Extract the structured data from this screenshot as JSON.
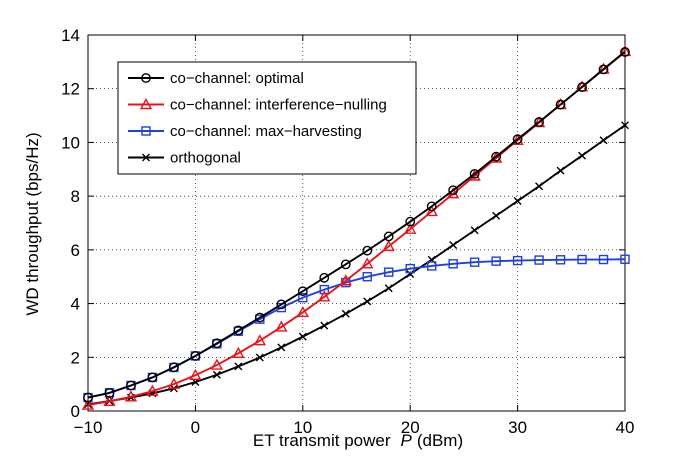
{
  "chart_data": {
    "type": "line",
    "title": "",
    "xlabel": "ET transmit power",
    "xlabel_var": "P",
    "xlabel_unit": "(dBm)",
    "ylabel": "WD throughput (bps/Hz)",
    "xlim": [
      -10,
      40
    ],
    "ylim": [
      0,
      14
    ],
    "xticks": [
      -10,
      0,
      10,
      20,
      30,
      40
    ],
    "yticks": [
      0,
      2,
      4,
      6,
      8,
      10,
      12,
      14
    ],
    "xtick_labels": [
      "−10",
      "0",
      "10",
      "20",
      "30",
      "40"
    ],
    "ytick_labels": [
      "0",
      "2",
      "4",
      "6",
      "8",
      "10",
      "12",
      "14"
    ],
    "grid": true,
    "legend_position": "top-left",
    "x": [
      -10,
      -8,
      -6,
      -4,
      -2,
      0,
      2,
      4,
      6,
      8,
      10,
      12,
      14,
      16,
      18,
      20,
      22,
      24,
      26,
      28,
      30,
      32,
      34,
      36,
      38,
      40
    ],
    "series": [
      {
        "name": "co−channel: optimal",
        "color": "#000000",
        "marker": "circle",
        "values": [
          0.5,
          0.67,
          0.95,
          1.25,
          1.63,
          2.05,
          2.52,
          3.0,
          3.48,
          3.97,
          4.46,
          4.96,
          5.46,
          5.97,
          6.5,
          7.05,
          7.62,
          8.22,
          8.83,
          9.47,
          10.12,
          10.76,
          11.41,
          12.06,
          12.72,
          13.37
        ]
      },
      {
        "name": "co−channel: interference−nulling",
        "color": "#e8141b",
        "marker": "triangle",
        "values": [
          0.22,
          0.36,
          0.53,
          0.74,
          1.0,
          1.33,
          1.71,
          2.15,
          2.62,
          3.13,
          3.67,
          4.25,
          4.85,
          5.48,
          6.13,
          6.77,
          7.43,
          8.09,
          8.75,
          9.42,
          10.08,
          10.74,
          11.41,
          12.07,
          12.73,
          13.39
        ]
      },
      {
        "name": "co−channel: max−harvesting",
        "color": "#1f3fe0",
        "marker": "square",
        "values": [
          0.5,
          0.68,
          0.95,
          1.25,
          1.62,
          2.05,
          2.5,
          2.97,
          3.42,
          3.85,
          4.22,
          4.52,
          4.78,
          5.0,
          5.17,
          5.3,
          5.4,
          5.48,
          5.54,
          5.58,
          5.6,
          5.62,
          5.63,
          5.64,
          5.64,
          5.65
        ]
      },
      {
        "name": "orthogonal",
        "color": "#000000",
        "marker": "x",
        "values": [
          0.25,
          0.37,
          0.5,
          0.66,
          0.84,
          1.08,
          1.35,
          1.66,
          1.99,
          2.37,
          2.77,
          3.18,
          3.62,
          4.08,
          4.57,
          5.1,
          5.63,
          6.18,
          6.73,
          7.27,
          7.82,
          8.37,
          8.95,
          9.51,
          10.08,
          10.64
        ]
      }
    ]
  }
}
